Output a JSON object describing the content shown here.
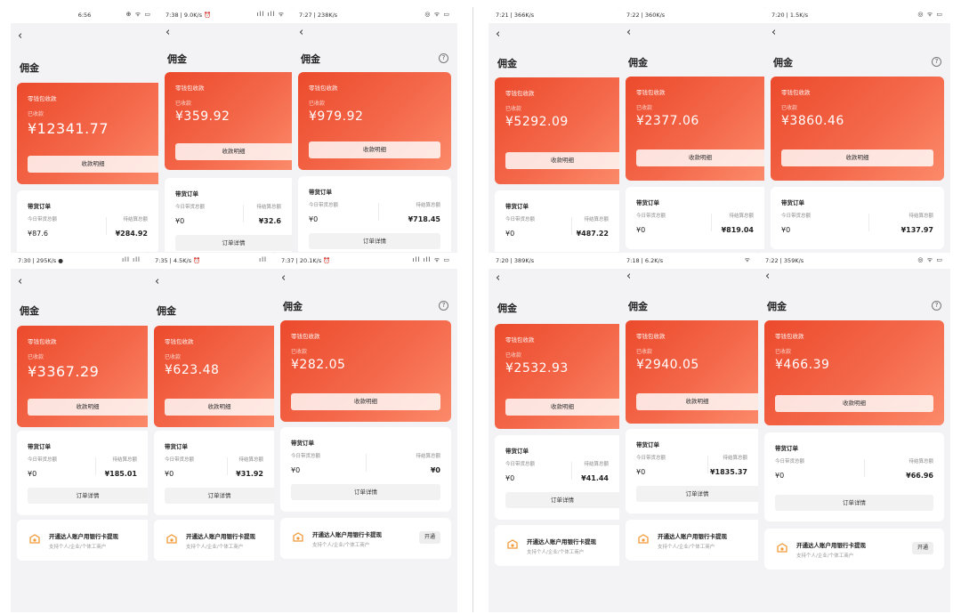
{
  "shared": {
    "title": "佣金",
    "wallet_label": "零钱包收款",
    "received_label": "已收款",
    "detail_button": "收款明细",
    "order_title": "带货订单",
    "today_label": "今日带货总额",
    "pending_label": "待结算总额",
    "order_button": "订单详情",
    "bank_title": "开通达人账户用银行卡提现",
    "bank_subtitle": "支持个人/企业/个体工商户",
    "open_button": "开通"
  },
  "screens": [
    {
      "time": "6:56",
      "icons": "⊕ ᯤ ▭",
      "amount": "¥12341.77",
      "today": "¥87.6",
      "pending": "¥284.92"
    },
    {
      "time": "7:38 | 9.0K/s ⏰",
      "icons": "ıll ıll ᯤ",
      "amount": "¥359.92",
      "today": "¥0",
      "pending": "¥32.6"
    },
    {
      "time": "7:27 | 238K/s",
      "icons": "◎ ᯤ ▭",
      "amount": "¥979.92",
      "today": "¥0",
      "pending": "¥718.45"
    },
    {
      "time": "7:30 | 295K/s ●",
      "icons": "ıll ıll",
      "amount": "¥3367.29",
      "today": "¥0",
      "pending": "¥185.01"
    },
    {
      "time": "7:35 | 4.5K/s ⏰",
      "icons": "ıll",
      "amount": "¥623.48",
      "today": "¥0",
      "pending": "¥31.92"
    },
    {
      "time": "7:37 | 20.1K/s ⏰",
      "icons": "ıll ıll ᯤ ▭",
      "amount": "¥282.05",
      "today": "¥0",
      "pending": "¥0"
    },
    {
      "time": "7:21 | 366K/s",
      "icons": "",
      "amount": "¥5292.09",
      "today": "¥0",
      "pending": "¥487.22"
    },
    {
      "time": "7:22 | 360K/s",
      "icons": "",
      "amount": "¥2377.06",
      "today": "¥0",
      "pending": "¥819.04"
    },
    {
      "time": "7:20 | 1.5K/s",
      "icons": "◎ ᯤ ▭",
      "amount": "¥3860.46",
      "today": "¥0",
      "pending": "¥137.97"
    },
    {
      "time": "7:20 | 389K/s",
      "icons": "",
      "amount": "¥2532.93",
      "today": "¥0",
      "pending": "¥41.44"
    },
    {
      "time": "7:18 | 6.2K/s",
      "icons": "ᯤ",
      "amount": "¥2940.05",
      "today": "¥0",
      "pending": "¥1835.37"
    },
    {
      "time": "7:22 | 359K/s",
      "icons": "◎ ᯤ ▭",
      "amount": "¥466.39",
      "today": "¥0",
      "pending": "¥66.96"
    }
  ],
  "colors": {
    "card_gradient_start": "#ec4a2c",
    "card_gradient_end": "#fb8a6a",
    "page_background": "#f3f3f5"
  }
}
